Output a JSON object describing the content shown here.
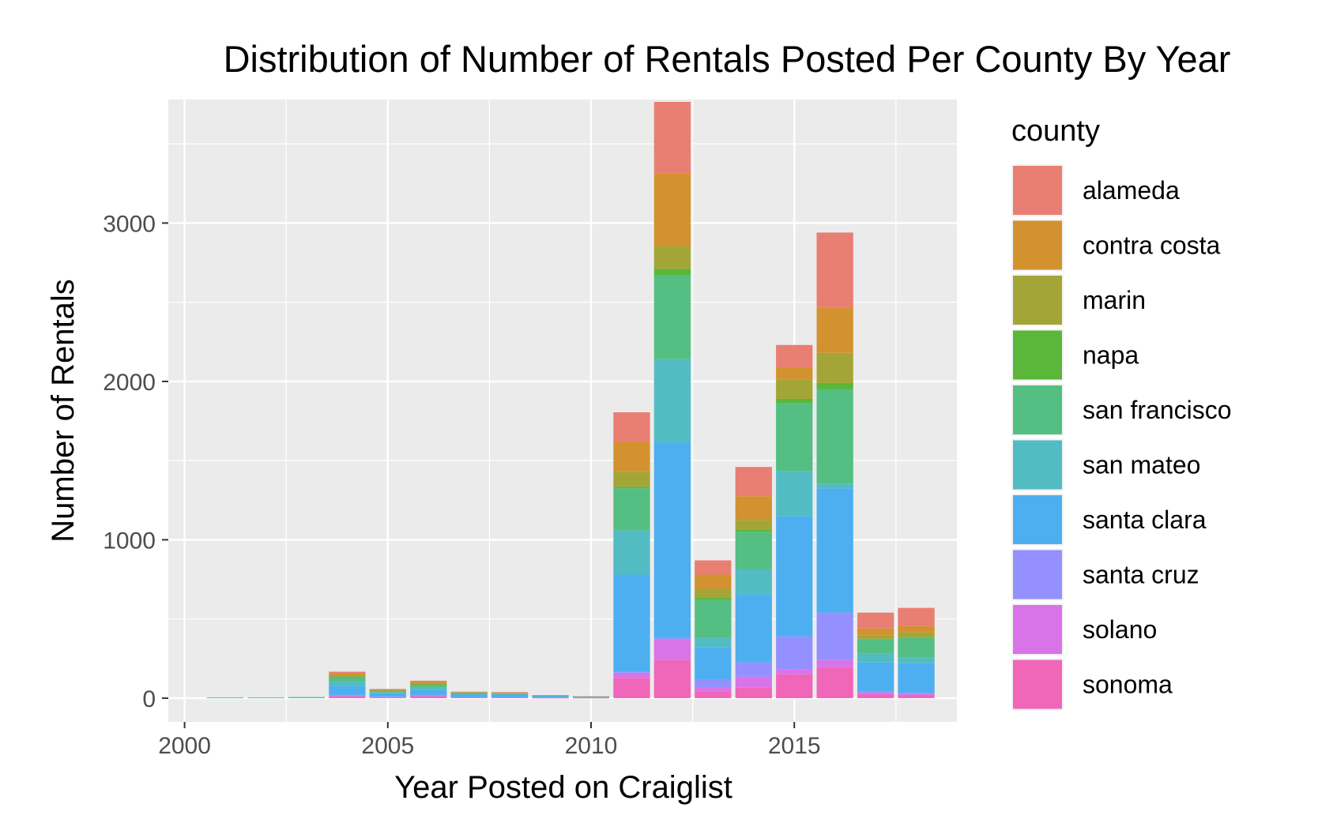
{
  "chart_data": {
    "type": "bar",
    "stacked": true,
    "title": "Distribution of Number of Rentals Posted Per County By Year",
    "xlabel": "Year Posted on Craiglist",
    "ylabel": "Number of Rentals",
    "xlim": [
      1999.6,
      2019.0
    ],
    "ylim": [
      -150,
      3780
    ],
    "x_ticks": [
      2000,
      2005,
      2010,
      2015
    ],
    "y_ticks": [
      0,
      1000,
      2000,
      3000
    ],
    "grid": true,
    "legend_title": "county",
    "legend_position": "right",
    "x": [
      2001,
      2002,
      2003,
      2004,
      2005,
      2006,
      2007,
      2008,
      2009,
      2010,
      2011,
      2012,
      2013,
      2014,
      2015,
      2016,
      2017,
      2018
    ],
    "series": [
      {
        "name": "sonoma",
        "color": "#F066B9",
        "values": [
          0,
          0,
          0,
          10,
          5,
          10,
          3,
          3,
          1,
          1,
          125,
          240,
          40,
          65,
          150,
          195,
          25,
          20
        ]
      },
      {
        "name": "solano",
        "color": "#D874E8",
        "values": [
          0,
          0,
          0,
          5,
          3,
          5,
          2,
          2,
          1,
          0,
          35,
          130,
          30,
          70,
          30,
          45,
          10,
          5
        ]
      },
      {
        "name": "santa cruz",
        "color": "#9590FF",
        "values": [
          0,
          0,
          0,
          5,
          2,
          5,
          2,
          2,
          1,
          0,
          5,
          10,
          45,
          90,
          210,
          300,
          10,
          10
        ]
      },
      {
        "name": "santa clara",
        "color": "#4DAFF0",
        "values": [
          3,
          3,
          4,
          55,
          20,
          30,
          15,
          15,
          10,
          8,
          615,
          1235,
          205,
          430,
          760,
          785,
          180,
          185
        ]
      },
      {
        "name": "san mateo",
        "color": "#53BBC2",
        "values": [
          1,
          1,
          1,
          30,
          8,
          15,
          5,
          4,
          2,
          1,
          280,
          525,
          60,
          160,
          285,
          30,
          55,
          35
        ]
      },
      {
        "name": "san francisco",
        "color": "#55BE82",
        "values": [
          1,
          1,
          2,
          30,
          8,
          20,
          5,
          4,
          1,
          1,
          265,
          530,
          240,
          235,
          430,
          595,
          90,
          125
        ]
      },
      {
        "name": "napa",
        "color": "#5BB73A",
        "values": [
          0,
          0,
          0,
          2,
          1,
          2,
          1,
          1,
          0,
          0,
          10,
          40,
          15,
          15,
          25,
          40,
          5,
          5
        ]
      },
      {
        "name": "marin",
        "color": "#A4A537",
        "values": [
          0,
          0,
          0,
          5,
          2,
          5,
          2,
          2,
          1,
          0,
          95,
          145,
          55,
          60,
          120,
          190,
          20,
          30
        ]
      },
      {
        "name": "contra costa",
        "color": "#D2922F",
        "values": [
          0,
          0,
          0,
          15,
          5,
          10,
          3,
          3,
          1,
          1,
          190,
          460,
          90,
          150,
          80,
          285,
          45,
          40
        ]
      },
      {
        "name": "alameda",
        "color": "#E97E72",
        "values": [
          0,
          0,
          0,
          10,
          4,
          8,
          3,
          3,
          1,
          0,
          185,
          450,
          90,
          185,
          140,
          475,
          100,
          115
        ]
      }
    ],
    "legend_order": [
      "alameda",
      "contra costa",
      "marin",
      "napa",
      "san francisco",
      "san mateo",
      "santa clara",
      "santa cruz",
      "solano",
      "sonoma"
    ]
  }
}
